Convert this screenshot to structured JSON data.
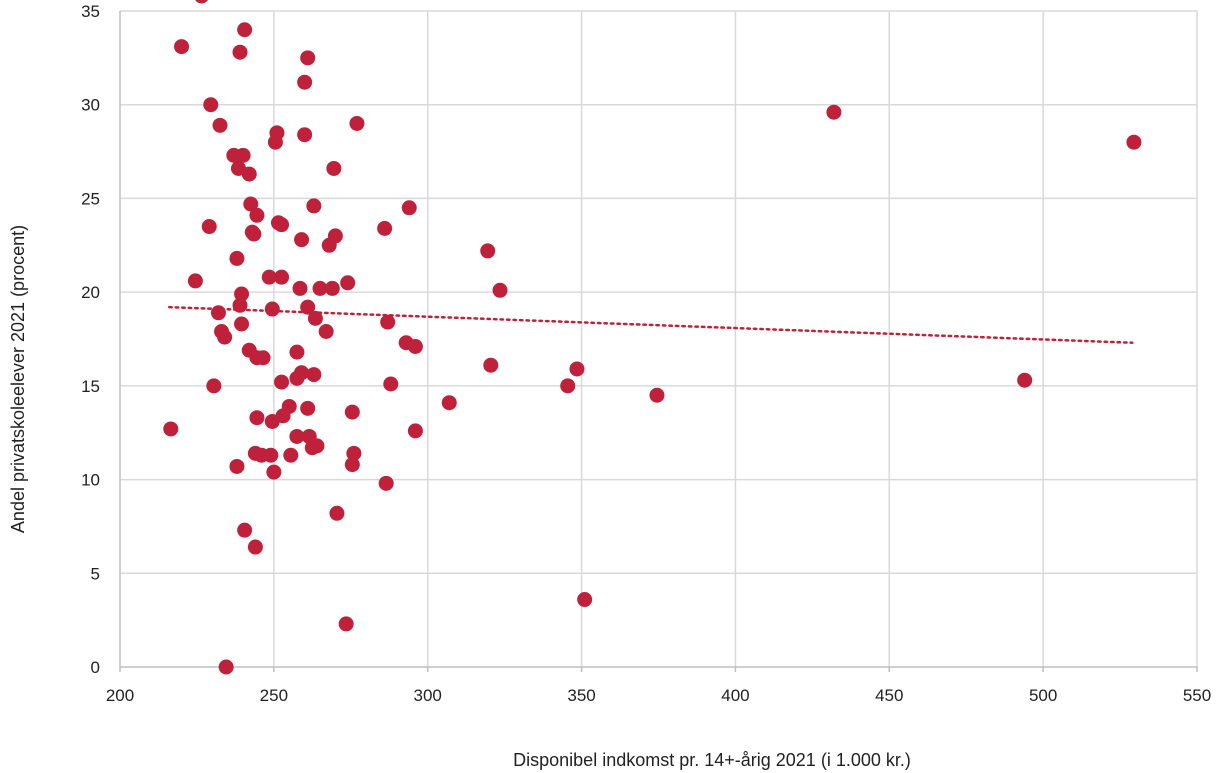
{
  "chart_data": {
    "type": "scatter",
    "title": "",
    "xlabel": "Disponibel indkomst pr. 14+-årig 2021 (i 1.000 kr.)",
    "ylabel": "Andel privatskoleelever  2021 (procent)",
    "xlim": [
      200,
      550
    ],
    "ylim": [
      0,
      35
    ],
    "x_ticks": [
      "200",
      "250",
      "300",
      "350",
      "400",
      "450",
      "500",
      "550"
    ],
    "y_ticks": [
      "0",
      "5",
      "10",
      "15",
      "20",
      "25",
      "30",
      "35"
    ],
    "grid": true,
    "legend": "none",
    "colors": {
      "points": "#C0213A",
      "trendline": "#C0213A",
      "grid": "#d9d9d9",
      "axis": "#bfbfbf"
    },
    "trendline": {
      "style": "dotted",
      "x": [
        216,
        529
      ],
      "y": [
        19.2,
        17.3
      ]
    },
    "series": [
      {
        "points": [
          [
            226.5,
            35.8
          ],
          [
            220,
            33.1
          ],
          [
            240.5,
            34.0
          ],
          [
            239,
            32.8
          ],
          [
            261,
            32.5
          ],
          [
            260,
            31.2
          ],
          [
            229.5,
            30.0
          ],
          [
            232.5,
            28.9
          ],
          [
            277,
            29.0
          ],
          [
            251,
            28.5
          ],
          [
            250.5,
            28.0
          ],
          [
            260,
            28.4
          ],
          [
            237,
            27.3
          ],
          [
            240,
            27.3
          ],
          [
            238.5,
            26.6
          ],
          [
            242,
            26.3
          ],
          [
            269.5,
            26.6
          ],
          [
            242.5,
            24.7
          ],
          [
            244.5,
            24.1
          ],
          [
            263,
            24.6
          ],
          [
            294,
            24.5
          ],
          [
            229,
            23.5
          ],
          [
            251.5,
            23.7
          ],
          [
            252.5,
            23.6
          ],
          [
            243,
            23.2
          ],
          [
            243.5,
            23.1
          ],
          [
            270,
            23.0
          ],
          [
            259,
            22.8
          ],
          [
            268,
            22.5
          ],
          [
            286,
            23.4
          ],
          [
            319.5,
            22.2
          ],
          [
            238,
            21.8
          ],
          [
            224.5,
            20.6
          ],
          [
            248.5,
            20.8
          ],
          [
            252.5,
            20.8
          ],
          [
            258.5,
            20.2
          ],
          [
            265,
            20.2
          ],
          [
            269,
            20.2
          ],
          [
            274,
            20.5
          ],
          [
            323.5,
            20.1
          ],
          [
            239.5,
            19.9
          ],
          [
            239,
            19.3
          ],
          [
            249.5,
            19.1
          ],
          [
            261,
            19.2
          ],
          [
            232,
            18.9
          ],
          [
            263.5,
            18.6
          ],
          [
            239.5,
            18.3
          ],
          [
            287,
            18.4
          ],
          [
            267,
            17.9
          ],
          [
            233,
            17.9
          ],
          [
            234,
            17.6
          ],
          [
            293,
            17.3
          ],
          [
            296,
            17.1
          ],
          [
            242,
            16.9
          ],
          [
            257.5,
            16.8
          ],
          [
            244.5,
            16.5
          ],
          [
            246.5,
            16.5
          ],
          [
            320.5,
            16.1
          ],
          [
            348.5,
            15.9
          ],
          [
            259,
            15.7
          ],
          [
            263,
            15.6
          ],
          [
            252.5,
            15.2
          ],
          [
            257.5,
            15.4
          ],
          [
            230.5,
            15.0
          ],
          [
            288,
            15.1
          ],
          [
            345.5,
            15.0
          ],
          [
            374.5,
            14.5
          ],
          [
            494,
            15.3
          ],
          [
            307,
            14.1
          ],
          [
            255,
            13.9
          ],
          [
            261,
            13.8
          ],
          [
            275.5,
            13.6
          ],
          [
            253,
            13.4
          ],
          [
            244.5,
            13.3
          ],
          [
            249.5,
            13.1
          ],
          [
            216.5,
            12.7
          ],
          [
            296,
            12.6
          ],
          [
            257.5,
            12.3
          ],
          [
            261.5,
            12.3
          ],
          [
            262.5,
            11.7
          ],
          [
            264,
            11.8
          ],
          [
            244,
            11.4
          ],
          [
            246,
            11.3
          ],
          [
            249,
            11.3
          ],
          [
            255.5,
            11.3
          ],
          [
            276,
            11.4
          ],
          [
            275.5,
            10.8
          ],
          [
            238,
            10.7
          ],
          [
            250,
            10.4
          ],
          [
            286.5,
            9.8
          ],
          [
            270.5,
            8.2
          ],
          [
            240.5,
            7.3
          ],
          [
            244,
            6.4
          ],
          [
            351,
            3.6
          ],
          [
            273.5,
            2.3
          ],
          [
            234.5,
            0.0
          ],
          [
            432,
            29.6
          ],
          [
            529.5,
            28.0
          ]
        ]
      }
    ]
  }
}
